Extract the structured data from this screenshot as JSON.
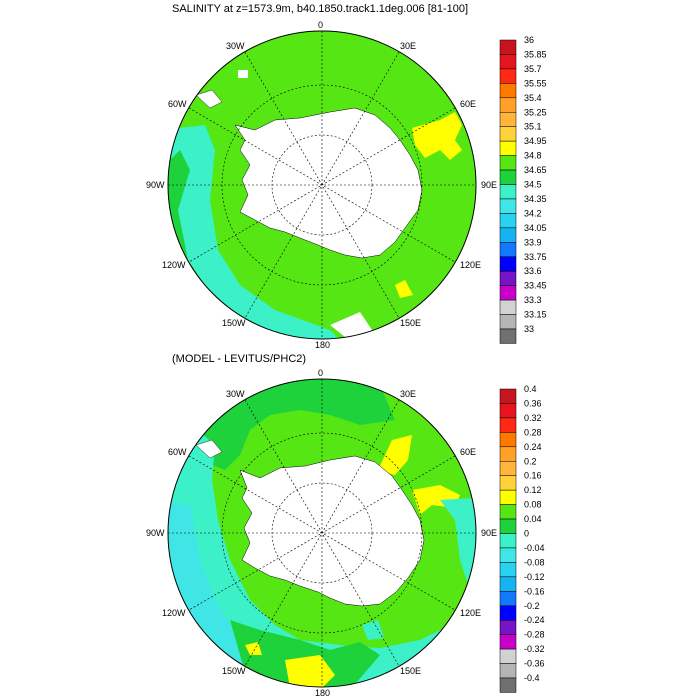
{
  "maps": [
    {
      "title": "SALINITY at z=1573.9m, b40.1850.track1.1deg.006 [81-100]",
      "lon_labels": [
        "0",
        "30E",
        "60E",
        "90E",
        "120E",
        "150E",
        "180",
        "150W",
        "120W",
        "90W",
        "60W",
        "30W"
      ],
      "colorbar": {
        "labels": [
          "36",
          "35.85",
          "35.7",
          "35.55",
          "35.4",
          "35.25",
          "35.1",
          "34.95",
          "34.8",
          "34.65",
          "34.5",
          "34.35",
          "34.2",
          "34.05",
          "33.9",
          "33.75",
          "33.6",
          "33.45",
          "33.3",
          "33.15",
          "33"
        ]
      }
    },
    {
      "title": "(MODEL - LEVITUS/PHC2)",
      "lon_labels": [
        "0",
        "30E",
        "60E",
        "90E",
        "120E",
        "150E",
        "180",
        "150W",
        "120W",
        "90W",
        "60W",
        "30W"
      ],
      "colorbar": {
        "labels": [
          "0.4",
          "0.36",
          "0.32",
          "0.28",
          "0.24",
          "0.2",
          "0.16",
          "0.12",
          "0.08",
          "0.04",
          "0",
          "-0.04",
          "-0.08",
          "-0.12",
          "-0.16",
          "-0.2",
          "-0.24",
          "-0.28",
          "-0.32",
          "-0.36",
          "-0.4"
        ]
      }
    }
  ],
  "colors": {
    "palette": [
      "#c8141e",
      "#e6141e",
      "#ff2814",
      "#ff7800",
      "#ffa028",
      "#ffb43c",
      "#ffd23c",
      "#ffff00",
      "#55e614",
      "#1ed23c",
      "#3cf0c8",
      "#40e6e6",
      "#28d2f0",
      "#14b4f0",
      "#1478ff",
      "#0000ff",
      "#7814c8",
      "#c800c8",
      "#d2d2d2",
      "#b4b4b4",
      "#707070"
    ],
    "ocean": "#55e614",
    "land": "#ffffff",
    "line": "#000000"
  }
}
